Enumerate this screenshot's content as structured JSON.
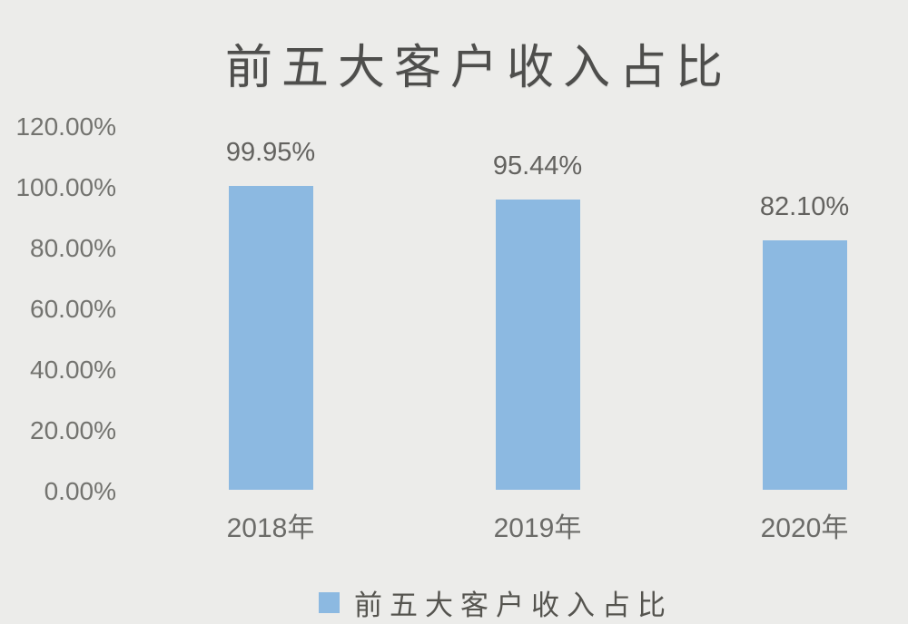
{
  "chart_data": {
    "type": "bar",
    "title": "前五大客户收入占比",
    "categories": [
      "2018年",
      "2019年",
      "2020年"
    ],
    "values": [
      99.95,
      95.44,
      82.1
    ],
    "data_labels": [
      "99.95%",
      "95.44%",
      "82.10%"
    ],
    "series": [
      {
        "name": "前五大客户收入占比",
        "values": [
          99.95,
          95.44,
          82.1
        ]
      }
    ],
    "y_ticks": [
      "120.00%",
      "100.00%",
      "80.00%",
      "60.00%",
      "40.00%",
      "20.00%",
      "0.00%"
    ],
    "y_tick_values": [
      120,
      100,
      80,
      60,
      40,
      20,
      0
    ],
    "ylim": [
      0,
      120
    ],
    "xlabel": "",
    "ylabel": "",
    "grid": false,
    "legend": {
      "label": "前五大客户收入占比",
      "position": "bottom",
      "marker": "square"
    },
    "colors": {
      "bar": "#8CB9E1",
      "background": "#ECECEA",
      "tick_text": "#73736F",
      "title_text": "#4E4E4C"
    }
  }
}
